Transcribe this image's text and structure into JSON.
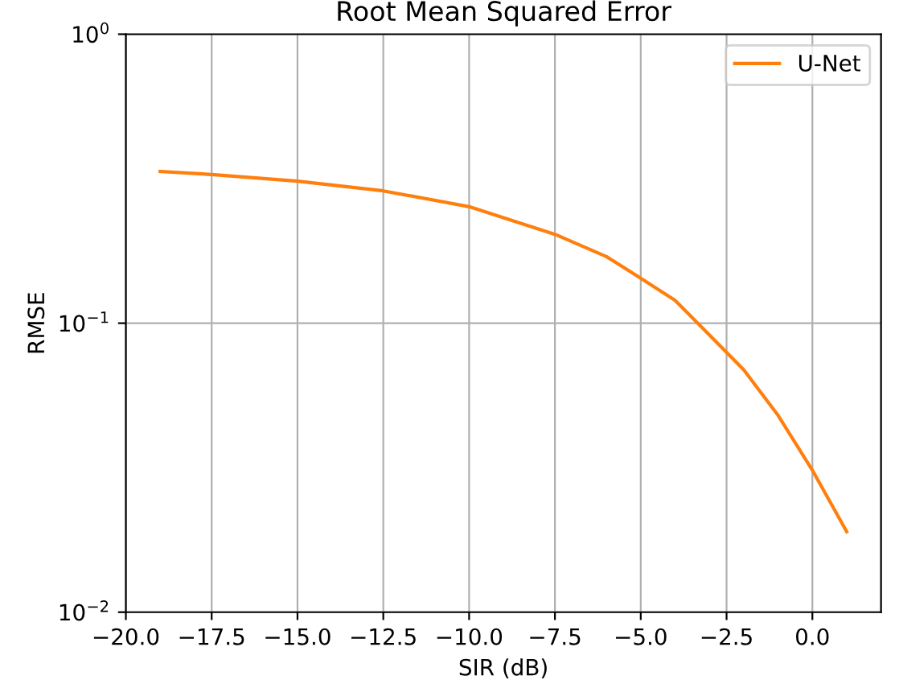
{
  "chart_data": {
    "type": "line",
    "title": "Root Mean Squared Error",
    "xlabel": "SIR (dB)",
    "ylabel": "RMSE",
    "log": "y",
    "grid": true,
    "legend": "top right",
    "xlim": [
      -20,
      2
    ],
    "xticks": [
      {
        "value": -20,
        "label": "−20.0"
      },
      {
        "value": -17.5,
        "label": "−17.5"
      },
      {
        "value": -15,
        "label": "−15.0"
      },
      {
        "value": -12.5,
        "label": "−12.5"
      },
      {
        "value": -10,
        "label": "−10.0"
      },
      {
        "value": -7.5,
        "label": "−7.5"
      },
      {
        "value": -5,
        "label": "−5.0"
      },
      {
        "value": -2.5,
        "label": "−2.5"
      },
      {
        "value": 0,
        "label": "0.0"
      }
    ],
    "ylim": [
      0.01,
      1
    ],
    "yticks": [
      {
        "value": 0.01,
        "label": "10$^{−2}$"
      },
      {
        "value": 0.1,
        "label": "10$^{−1}$"
      },
      {
        "value": 1,
        "label": "10$^{0}$"
      }
    ],
    "series": [
      {
        "name": "U-Net",
        "color": "#ff7f0e",
        "x": [
          -19,
          -17.5,
          -15,
          -12.5,
          -10,
          -7.5,
          -6,
          -5,
          -4,
          -3,
          -2,
          -1,
          0,
          1
        ],
        "values": [
          0.335,
          0.327,
          0.31,
          0.287,
          0.253,
          0.203,
          0.17,
          0.143,
          0.12,
          0.091,
          0.069,
          0.048,
          0.031,
          0.019
        ]
      }
    ]
  }
}
